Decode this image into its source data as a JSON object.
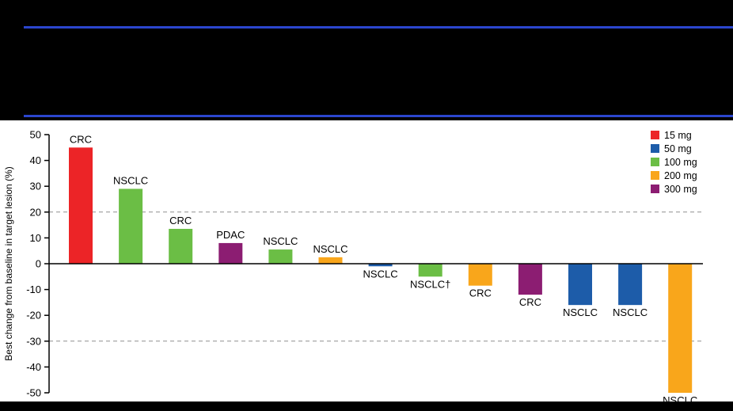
{
  "header": {
    "note": "redacted-black-band",
    "rule_color": "#2B46CE"
  },
  "chart_data": {
    "type": "bar",
    "title": "",
    "xlabel": "",
    "ylabel": "Best change from baseline in target lesion (%)",
    "ylim": [
      -50,
      50
    ],
    "yticks": [
      50,
      40,
      30,
      20,
      10,
      0,
      -10,
      -20,
      -30,
      -40,
      -50
    ],
    "dashed_gridlines": [
      20,
      -30
    ],
    "grid": "dashed reference lines at +20 and -30 only",
    "legend_position": "top-right",
    "legend": [
      {
        "label": "15 mg",
        "color": "#EC2427"
      },
      {
        "label": "50 mg",
        "color": "#1D5CA9"
      },
      {
        "label": "100 mg",
        "color": "#6BBE45"
      },
      {
        "label": "200 mg",
        "color": "#F9A61B"
      },
      {
        "label": "300 mg",
        "color": "#8C1D72"
      }
    ],
    "bars": [
      {
        "label": "CRC",
        "dose": "15 mg",
        "value": 45
      },
      {
        "label": "NSCLC",
        "dose": "100 mg",
        "value": 29
      },
      {
        "label": "CRC",
        "dose": "100 mg",
        "value": 13.5
      },
      {
        "label": "PDAC",
        "dose": "300 mg",
        "value": 8
      },
      {
        "label": "NSCLC",
        "dose": "100 mg",
        "value": 5.5
      },
      {
        "label": "NSCLC",
        "dose": "200 mg",
        "value": 2.5
      },
      {
        "label": "NSCLC",
        "dose": "50 mg",
        "value": -1
      },
      {
        "label": "NSCLC†",
        "dose": "100 mg",
        "value": -5
      },
      {
        "label": "CRC",
        "dose": "200 mg",
        "value": -8.5
      },
      {
        "label": "CRC",
        "dose": "300 mg",
        "value": -12
      },
      {
        "label": "NSCLC",
        "dose": "50 mg",
        "value": -16
      },
      {
        "label": "NSCLC",
        "dose": "50 mg",
        "value": -16
      },
      {
        "label": "NSCLC",
        "dose": "200 mg",
        "value": -50
      }
    ]
  }
}
